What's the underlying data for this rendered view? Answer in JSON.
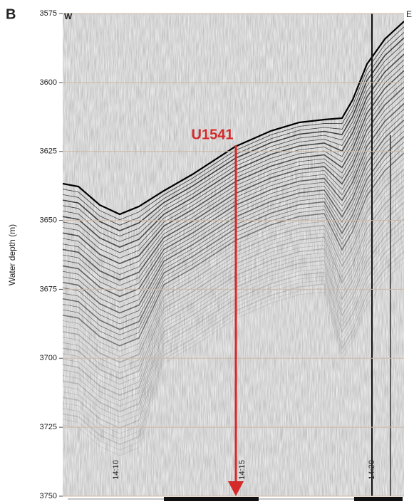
{
  "chart_data": {
    "type": "seismic-profile",
    "panel_label": "B",
    "ylabel": "Water depth (m)",
    "ylim": [
      3575,
      3750
    ],
    "yticks": [
      3575,
      3600,
      3625,
      3650,
      3675,
      3700,
      3725,
      3750
    ],
    "y_inverted": true,
    "grid": true,
    "west_label": "W",
    "east_label": "E",
    "time_labels": [
      "14:10",
      "14:15",
      "14:20"
    ],
    "site": {
      "label": "U1541",
      "color": "#d42a2a"
    }
  }
}
